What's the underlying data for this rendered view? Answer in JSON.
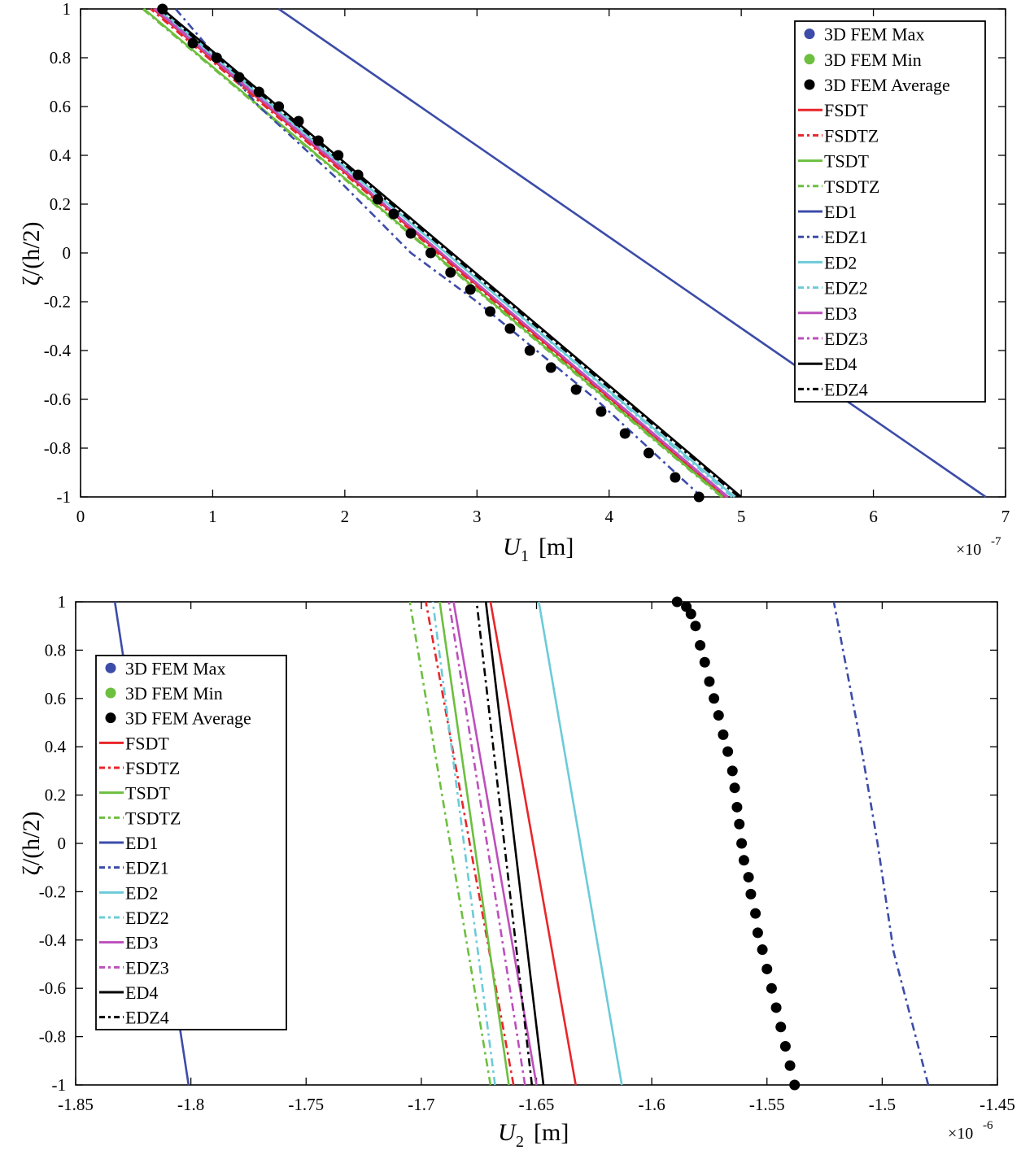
{
  "legend_labels": [
    "3D FEM Max",
    "3D FEM Min",
    "3D FEM Average",
    "FSDT",
    "FSDTZ",
    "TSDT",
    "TSDTZ",
    "ED1",
    "EDZ1",
    "ED2",
    "EDZ2",
    "ED3",
    "EDZ3",
    "ED4",
    "EDZ4"
  ],
  "colors": {
    "blue": "#3c4ca8",
    "green": "#6cbf3f",
    "red": "#e8262a",
    "cyan": "#6ccbd8",
    "magenta": "#bd4fbd",
    "black": "#000000"
  },
  "chart_data": [
    {
      "type": "line",
      "xlabel_base": "U",
      "xlabel_sub": "1",
      "xlabel_unit": "[m]",
      "ylabel": "ζ/(h/2)",
      "exponent_label": "×10",
      "exponent_power": "-7",
      "xlim": [
        0,
        7
      ],
      "ylim": [
        -1,
        1
      ],
      "x_ticks": [
        "0",
        "1",
        "2",
        "3",
        "4",
        "5",
        "6",
        "7"
      ],
      "y_ticks": [
        "-1",
        "-0.8",
        "-0.6",
        "-0.4",
        "-0.2",
        "0",
        "0.2",
        "0.4",
        "0.6",
        "0.8",
        "1"
      ],
      "legend_position": "top-right",
      "series": [
        {
          "name": "FSDT",
          "color": "red",
          "dash": "solid",
          "x": [
            4.88,
            0.55
          ],
          "y": [
            -1,
            1
          ]
        },
        {
          "name": "FSDTZ",
          "color": "red",
          "dash": "dashdot",
          "x": [
            4.87,
            0.53
          ],
          "y": [
            -1,
            1
          ]
        },
        {
          "name": "TSDT",
          "color": "green",
          "dash": "solid",
          "x": [
            4.86,
            0.48
          ],
          "y": [
            -1,
            1
          ]
        },
        {
          "name": "TSDTZ",
          "color": "green",
          "dash": "dashdot",
          "x": [
            4.85,
            0.47
          ],
          "y": [
            -1,
            1
          ]
        },
        {
          "name": "ED1",
          "color": "blue",
          "dash": "solid",
          "x": [
            6.85,
            1.5
          ],
          "y": [
            -1,
            1
          ]
        },
        {
          "name": "EDZ1",
          "color": "blue",
          "dash": "dashdot",
          "x": [
            4.7,
            4.3,
            3.9,
            3.45,
            3.0,
            2.5,
            1.95,
            1.35,
            0.72
          ],
          "y": [
            -1,
            -0.8,
            -0.6,
            -0.4,
            -0.2,
            0,
            0.3,
            0.6,
            1
          ]
        },
        {
          "name": "ED2",
          "color": "cyan",
          "dash": "solid",
          "x": [
            4.95,
            0.58
          ],
          "y": [
            -1,
            1
          ]
        },
        {
          "name": "EDZ2",
          "color": "cyan",
          "dash": "dashdot",
          "x": [
            4.93,
            0.6
          ],
          "y": [
            -1,
            1
          ]
        },
        {
          "name": "ED3",
          "color": "magenta",
          "dash": "solid",
          "x": [
            4.9,
            0.56
          ],
          "y": [
            -1,
            1
          ]
        },
        {
          "name": "EDZ3",
          "color": "magenta",
          "dash": "dashdot",
          "x": [
            4.89,
            0.57
          ],
          "y": [
            -1,
            1
          ]
        },
        {
          "name": "ED4",
          "color": "black",
          "dash": "solid",
          "x": [
            5.0,
            0.62
          ],
          "y": [
            -1,
            1
          ]
        },
        {
          "name": "EDZ4",
          "color": "black",
          "dash": "dashdot",
          "x": [
            4.98,
            0.6
          ],
          "y": [
            -1,
            1
          ]
        },
        {
          "name": "3D FEM Average",
          "color": "black",
          "dash": "markers",
          "x": [
            4.68,
            4.5,
            4.3,
            4.12,
            3.94,
            3.75,
            3.56,
            3.4,
            3.25,
            3.1,
            2.95,
            2.8,
            2.65,
            2.5,
            2.37,
            2.25,
            2.1,
            1.95,
            1.8,
            1.65,
            1.5,
            1.35,
            1.2,
            1.03,
            0.85,
            0.62
          ],
          "y": [
            -1,
            -0.92,
            -0.82,
            -0.74,
            -0.65,
            -0.56,
            -0.47,
            -0.4,
            -0.31,
            -0.24,
            -0.15,
            -0.08,
            0.0,
            0.08,
            0.16,
            0.22,
            0.32,
            0.4,
            0.46,
            0.54,
            0.6,
            0.66,
            0.72,
            0.8,
            0.86,
            1
          ]
        }
      ]
    },
    {
      "type": "line",
      "xlabel_base": "U",
      "xlabel_sub": "2",
      "xlabel_unit": "[m]",
      "ylabel": "ζ/(h/2)",
      "exponent_label": "×10",
      "exponent_power": "-6",
      "xlim": [
        -1.85,
        -1.45
      ],
      "ylim": [
        -1,
        1
      ],
      "x_ticks": [
        "-1.85",
        "-1.8",
        "-1.75",
        "-1.7",
        "-1.65",
        "-1.6",
        "-1.55",
        "-1.5",
        "-1.45"
      ],
      "y_ticks": [
        "-1",
        "-0.8",
        "-0.6",
        "-0.4",
        "-0.2",
        "0",
        "0.2",
        "0.4",
        "0.6",
        "0.8",
        "1"
      ],
      "legend_position": "top-left",
      "series": [
        {
          "name": "FSDT",
          "color": "red",
          "dash": "solid",
          "x": [
            -1.633,
            -1.67
          ],
          "y": [
            -1,
            1
          ]
        },
        {
          "name": "FSDTZ",
          "color": "red",
          "dash": "dashdot",
          "x": [
            -1.66,
            -1.698
          ],
          "y": [
            -1,
            1
          ]
        },
        {
          "name": "TSDT",
          "color": "green",
          "dash": "solid",
          "x": [
            -1.662,
            -1.692
          ],
          "y": [
            -1,
            1
          ]
        },
        {
          "name": "TSDTZ",
          "color": "green",
          "dash": "dashdot",
          "x": [
            -1.67,
            -1.705
          ],
          "y": [
            -1,
            1
          ]
        },
        {
          "name": "ED1",
          "color": "blue",
          "dash": "solid",
          "x": [
            -1.801,
            -1.833
          ],
          "y": [
            -1,
            1
          ]
        },
        {
          "name": "EDZ1",
          "color": "blue",
          "dash": "dashdot",
          "x": [
            -1.48,
            -1.495,
            -1.502,
            -1.51,
            -1.521
          ],
          "y": [
            -1,
            -0.45,
            0.0,
            0.45,
            1
          ]
        },
        {
          "name": "ED2",
          "color": "cyan",
          "dash": "solid",
          "x": [
            -1.613,
            -1.649
          ],
          "y": [
            -1,
            1
          ]
        },
        {
          "name": "EDZ2",
          "color": "cyan",
          "dash": "dashdot",
          "x": [
            -1.668,
            -1.695
          ],
          "y": [
            -1,
            1
          ]
        },
        {
          "name": "ED3",
          "color": "magenta",
          "dash": "solid",
          "x": [
            -1.65,
            -1.686
          ],
          "y": [
            -1,
            1
          ]
        },
        {
          "name": "EDZ3",
          "color": "magenta",
          "dash": "dashdot",
          "x": [
            -1.655,
            -1.688
          ],
          "y": [
            -1,
            1
          ]
        },
        {
          "name": "ED4",
          "color": "black",
          "dash": "solid",
          "x": [
            -1.647,
            -1.672
          ],
          "y": [
            -1,
            1
          ]
        },
        {
          "name": "EDZ4",
          "color": "black",
          "dash": "dashdot",
          "x": [
            -1.652,
            -1.676
          ],
          "y": [
            -1,
            1
          ]
        },
        {
          "name": "3D FEM Average",
          "color": "black",
          "dash": "markers",
          "x": [
            -1.538,
            -1.54,
            -1.542,
            -1.544,
            -1.546,
            -1.548,
            -1.55,
            -1.552,
            -1.554,
            -1.555,
            -1.557,
            -1.558,
            -1.56,
            -1.561,
            -1.562,
            -1.563,
            -1.564,
            -1.565,
            -1.567,
            -1.569,
            -1.571,
            -1.573,
            -1.575,
            -1.577,
            -1.579,
            -1.581,
            -1.583,
            -1.585,
            -1.589
          ],
          "y": [
            -1,
            -0.92,
            -0.84,
            -0.76,
            -0.68,
            -0.6,
            -0.52,
            -0.44,
            -0.37,
            -0.29,
            -0.21,
            -0.14,
            -0.07,
            0.0,
            0.08,
            0.15,
            0.23,
            0.3,
            0.38,
            0.45,
            0.53,
            0.6,
            0.67,
            0.75,
            0.82,
            0.9,
            0.95,
            0.98,
            1
          ]
        }
      ]
    }
  ]
}
